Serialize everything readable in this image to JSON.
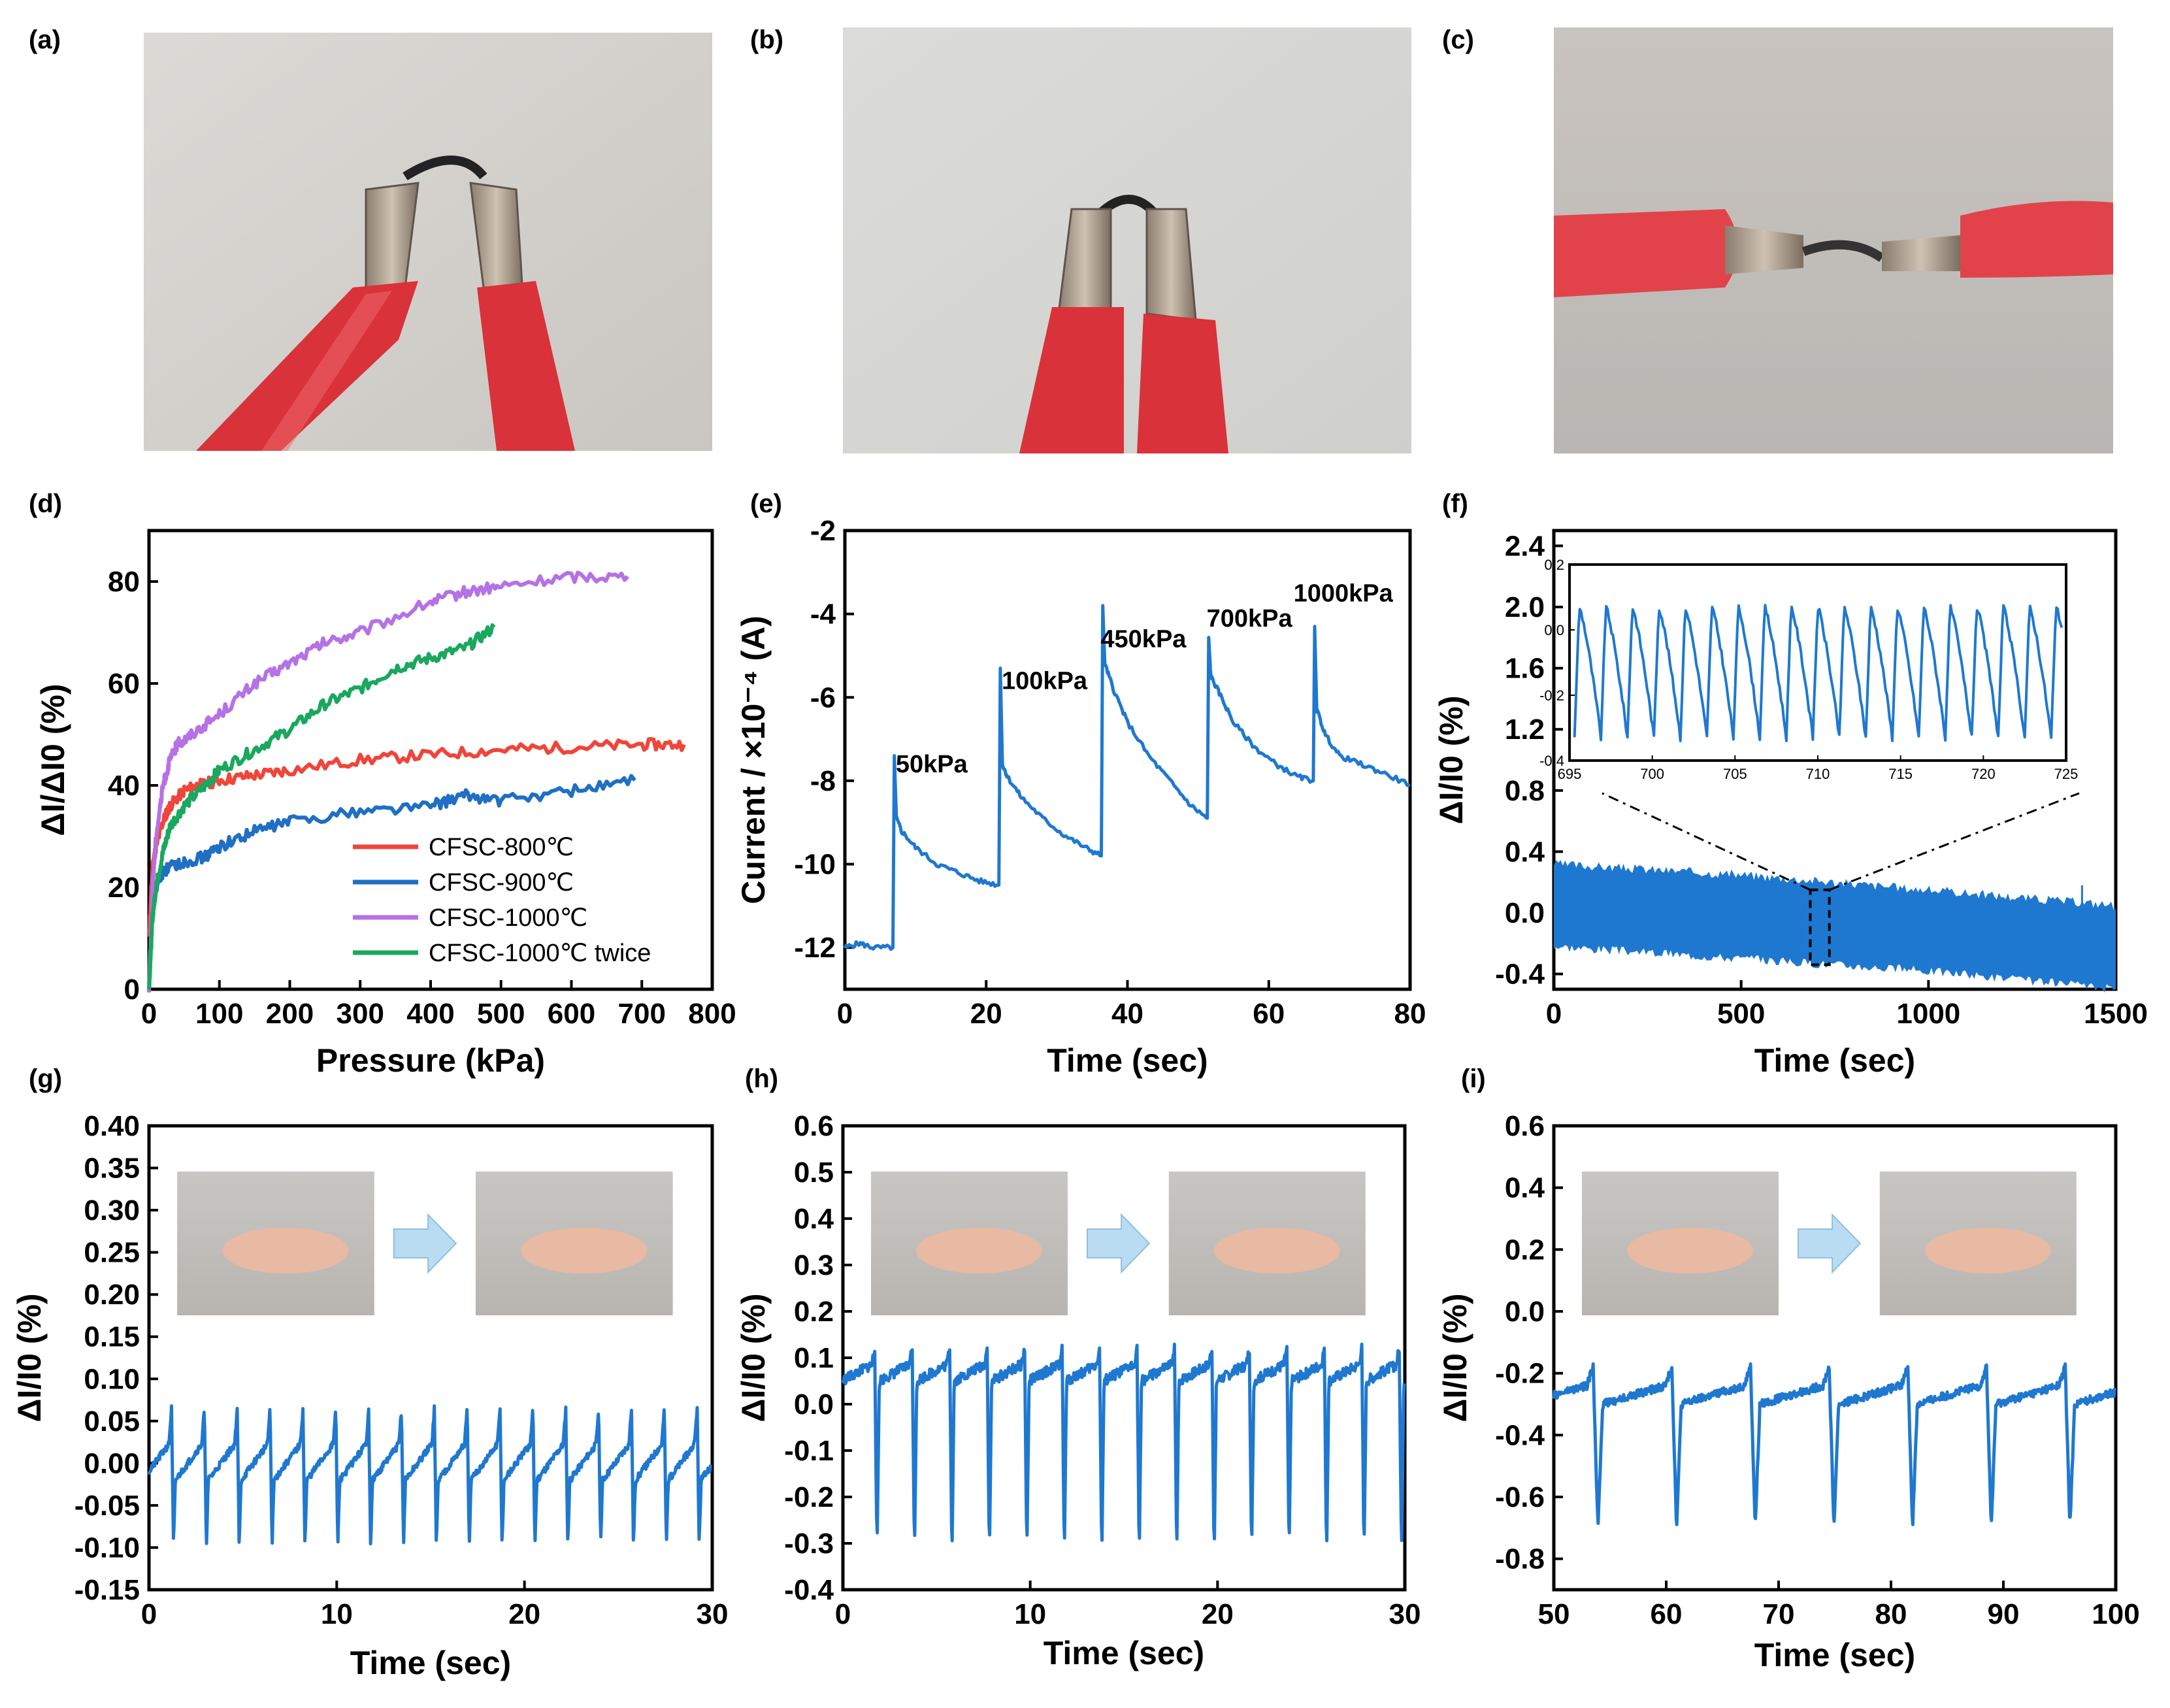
{
  "panels": {
    "a": {
      "letter": "(a)",
      "photo": "alligator-clips-bent-strip-photo"
    },
    "b": {
      "letter": "(b)",
      "photo": "alligator-clips-folded-strip-photo"
    },
    "c": {
      "letter": "(c)",
      "photo": "alligator-clips-twisted-strip-photo"
    },
    "d": {
      "letter": "(d)"
    },
    "e": {
      "letter": "(e)"
    },
    "f": {
      "letter": "(f)"
    },
    "g": {
      "letter": "(g)",
      "photos": [
        "finger-straight-photo",
        "finger-bent-photo"
      ]
    },
    "h": {
      "letter": "(h)",
      "photos": [
        "finger-straight-photo",
        "finger-bent-photo"
      ]
    },
    "i": {
      "letter": "(i)",
      "photos": [
        "wrist-bent-photo",
        "wrist-flexed-photo"
      ]
    }
  },
  "colors": {
    "red": "#f0453a",
    "blue": "#1f6fc4",
    "purple": "#b571e6",
    "green": "#19a85e",
    "trace": "#1f78d0",
    "arrow": "#b9dcf2",
    "clip": "#d9323a",
    "wall": "#d8d5d0"
  },
  "chart_data": [
    {
      "id": "d",
      "type": "line",
      "xlabel": "Pressure (kPa)",
      "ylabel": "ΔI/ΔI0 (%)",
      "xlim": [
        0,
        800
      ],
      "ylim": [
        0,
        90
      ],
      "xticks": [
        0,
        100,
        200,
        300,
        400,
        500,
        600,
        700,
        800
      ],
      "yticks": [
        0,
        20,
        40,
        60,
        80
      ],
      "legend": "bottom-right",
      "series": [
        {
          "name": "CFSC-800℃",
          "color": "#f0453a",
          "x": [
            0,
            5,
            10,
            20,
            30,
            50,
            70,
            100,
            150,
            200,
            300,
            400,
            500,
            600,
            700,
            760
          ],
          "y": [
            10,
            24,
            28,
            33,
            36,
            39,
            40,
            41,
            42,
            43,
            45,
            46,
            47,
            47.5,
            48,
            48
          ]
        },
        {
          "name": "CFSC-900℃",
          "color": "#1f6fc4",
          "x": [
            0,
            5,
            10,
            20,
            30,
            50,
            80,
            100,
            150,
            200,
            300,
            400,
            450,
            500,
            600,
            690
          ],
          "y": [
            0,
            15,
            20,
            23,
            24,
            25,
            26,
            28,
            31,
            33,
            35,
            36,
            38,
            37,
            39,
            41
          ]
        },
        {
          "name": "CFSC-1000℃",
          "color": "#b571e6",
          "x": [
            0,
            5,
            10,
            20,
            30,
            40,
            60,
            100,
            150,
            200,
            250,
            300,
            400,
            450,
            500,
            600,
            680
          ],
          "y": [
            0,
            20,
            30,
            40,
            45,
            48,
            50,
            54,
            60,
            64,
            68,
            70,
            76,
            78,
            79,
            81,
            81
          ]
        },
        {
          "name": "CFSC-1000℃ twice",
          "color": "#19a85e",
          "x": [
            0,
            5,
            10,
            20,
            30,
            50,
            80,
            100,
            150,
            200,
            250,
            300,
            350,
            400,
            450,
            490
          ],
          "y": [
            0,
            14,
            20,
            27,
            32,
            36,
            40,
            43,
            47,
            51,
            56,
            59,
            63,
            65,
            67,
            71
          ]
        }
      ]
    },
    {
      "id": "e",
      "type": "line",
      "xlabel": "Time (sec)",
      "ylabel": "Current / ×10⁻⁴ (A)",
      "xlim": [
        0,
        80
      ],
      "ylim": [
        -13,
        -2
      ],
      "xticks": [
        0,
        20,
        40,
        60,
        80
      ],
      "yticks": [
        -12,
        -10,
        -8,
        -6,
        -4,
        -2
      ],
      "annotations": [
        {
          "text": "50kPa",
          "x": 7.2,
          "y": -7.8
        },
        {
          "text": "100kPa",
          "x": 22.2,
          "y": -5.8
        },
        {
          "text": "450kPa",
          "x": 36.2,
          "y": -4.8
        },
        {
          "text": "700kPa",
          "x": 51.2,
          "y": -4.3
        },
        {
          "text": "1000kPa",
          "x": 63.5,
          "y": -3.7
        }
      ],
      "series": [
        {
          "name": "current",
          "color": "#1f78d0",
          "x": [
            0,
            2,
            4,
            6.8,
            7.0,
            7.3,
            8,
            10,
            13,
            16,
            19,
            21.8,
            22.0,
            22.3,
            23,
            25,
            28,
            31,
            34,
            36.3,
            36.5,
            36.8,
            38,
            40,
            43,
            46,
            49,
            51.3,
            51.5,
            51.8,
            53,
            55,
            58,
            61,
            64,
            66.3,
            66.5,
            66.8,
            68,
            70,
            73,
            76,
            80
          ],
          "y": [
            -12,
            -11.9,
            -12,
            -12,
            -7.4,
            -8.9,
            -9.2,
            -9.6,
            -10.0,
            -10.2,
            -10.4,
            -10.5,
            -5.3,
            -7.6,
            -7.9,
            -8.4,
            -8.9,
            -9.3,
            -9.6,
            -9.8,
            -3.8,
            -5.2,
            -5.8,
            -6.6,
            -7.4,
            -8.0,
            -8.6,
            -8.9,
            -4.6,
            -5.5,
            -5.9,
            -6.6,
            -7.2,
            -7.6,
            -7.9,
            -8.0,
            -4.3,
            -6.3,
            -6.9,
            -7.4,
            -7.6,
            -7.8,
            -8.1
          ]
        }
      ]
    },
    {
      "id": "f",
      "type": "line",
      "xlabel": "Time (sec)",
      "ylabel": "ΔI/I0 (%)",
      "xlim": [
        0,
        1500
      ],
      "ylim": [
        -0.5,
        2.5
      ],
      "xticks": [
        0,
        500,
        1000,
        1500
      ],
      "yticks": [
        -0.4,
        0.0,
        0.4,
        0.8,
        1.2,
        1.6,
        2.0,
        2.4
      ],
      "band": {
        "x": [
          0,
          500,
          1000,
          1500
        ],
        "upper": [
          0.32,
          0.25,
          0.15,
          0.05
        ],
        "lower": [
          -0.22,
          -0.3,
          -0.38,
          -0.5
        ]
      },
      "series": [
        {
          "name": "signal",
          "color": "#1f78d0",
          "period": 1.6,
          "high": 0.05,
          "low": -0.35,
          "drift": -0.15
        }
      ],
      "inset": {
        "type": "line",
        "xlim": [
          695,
          725
        ],
        "ylim": [
          -0.4,
          0.2
        ],
        "xticks": [
          695,
          700,
          705,
          710,
          715,
          720,
          725
        ],
        "yticks": [
          -0.4,
          -0.2,
          0.0,
          0.2
        ],
        "zoom_x": [
          700,
          720
        ],
        "series": [
          {
            "name": "signal-zoom",
            "color": "#1f78d0",
            "period": 1.6,
            "high": 0.07,
            "low": -0.33
          }
        ]
      }
    },
    {
      "id": "g",
      "type": "line",
      "xlabel": "Time (sec)",
      "ylabel": "ΔI/I0 (%)",
      "xlim": [
        0,
        30
      ],
      "ylim": [
        -0.15,
        0.4
      ],
      "xticks": [
        0,
        10,
        20,
        30
      ],
      "yticks": [
        -0.15,
        -0.1,
        -0.05,
        0.0,
        0.05,
        0.1,
        0.15,
        0.2,
        0.25,
        0.3,
        0.35,
        0.4
      ],
      "series": [
        {
          "name": "finger-bend",
          "color": "#1f78d0",
          "period": 1.75,
          "phase": 1.2,
          "high": 0.065,
          "low": -0.1,
          "rest": -0.02
        }
      ]
    },
    {
      "id": "h",
      "type": "line",
      "xlabel": "Time (sec)",
      "ylabel": "ΔI/I0 (%)",
      "xlim": [
        0,
        30
      ],
      "ylim": [
        -0.4,
        0.6
      ],
      "xticks": [
        0,
        10,
        20,
        30
      ],
      "yticks": [
        -0.4,
        -0.3,
        -0.2,
        -0.1,
        0.0,
        0.1,
        0.2,
        0.3,
        0.4,
        0.5,
        0.6
      ],
      "series": [
        {
          "name": "finger-bend-2",
          "color": "#1f78d0",
          "period": 2.0,
          "phase": 1.7,
          "high": 0.12,
          "low": -0.33,
          "rest": 0.05
        }
      ]
    },
    {
      "id": "i",
      "type": "line",
      "xlabel": "Time (sec)",
      "ylabel": "ΔI/I0 (%)",
      "xlim": [
        50,
        100
      ],
      "ylim": [
        -0.9,
        0.6
      ],
      "xticks": [
        50,
        60,
        70,
        80,
        90,
        100
      ],
      "yticks": [
        -0.8,
        -0.6,
        -0.4,
        -0.2,
        0.0,
        0.2,
        0.4,
        0.6
      ],
      "series": [
        {
          "name": "wrist-bend",
          "color": "#1f78d0",
          "period": 7.0,
          "phase": 53.5,
          "high": -0.18,
          "low": -0.7,
          "rest": -0.3
        }
      ]
    }
  ]
}
